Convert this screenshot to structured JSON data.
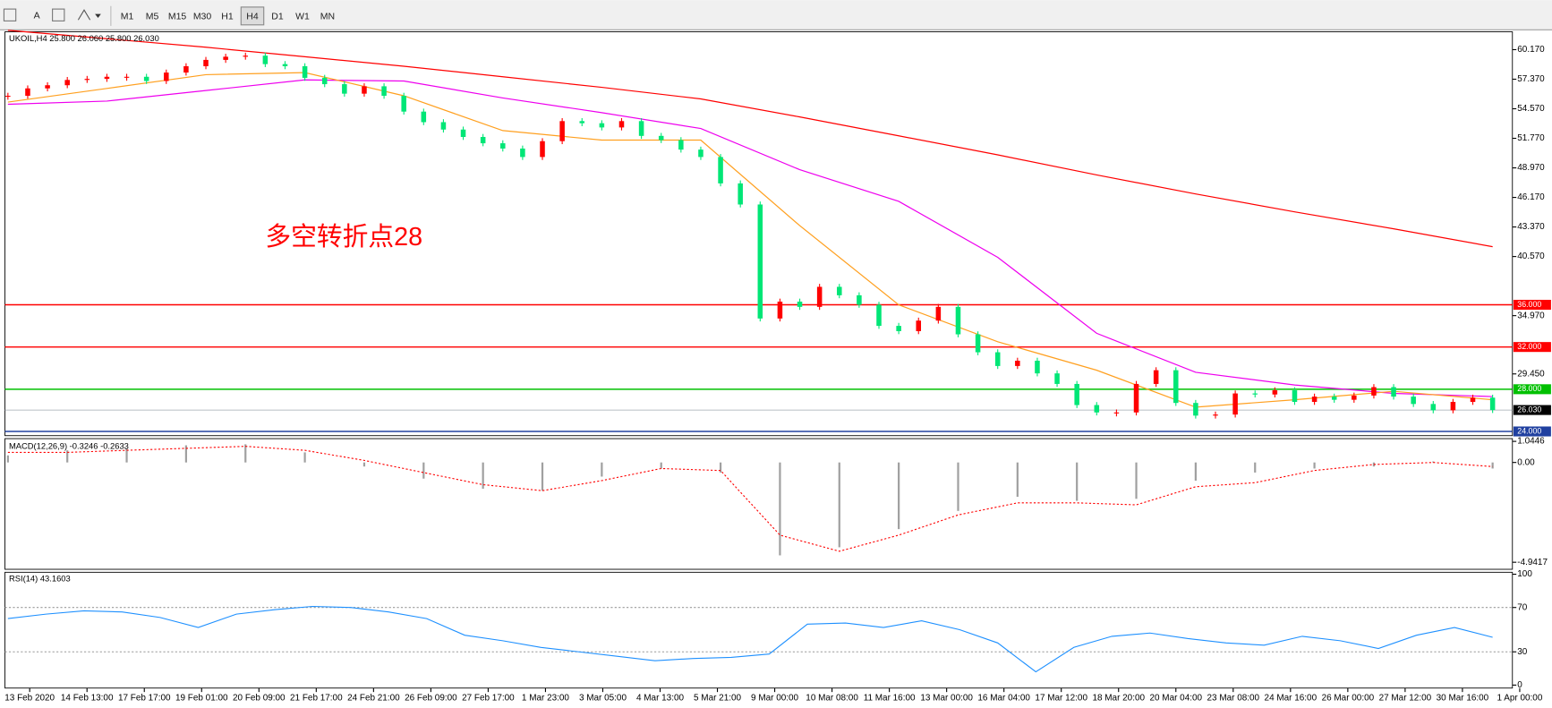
{
  "toolbar": {
    "timeframes": [
      "M1",
      "M5",
      "M15",
      "M30",
      "H1",
      "H4",
      "D1",
      "W1",
      "MN"
    ],
    "active": "H4"
  },
  "chart_data": [
    {
      "type": "candlestick",
      "title": "UKOIL,H4  25.800 26.060 25.800 26.030",
      "annotation": "多空转折点28",
      "up_color": "#ff0000",
      "down_color": "#00e676",
      "closes": [
        55.8,
        56.5,
        56.8,
        57.3,
        57.4,
        57.6,
        57.6,
        57.2,
        58.0,
        58.6,
        59.2,
        59.5,
        59.6,
        58.8,
        58.6,
        57.5,
        56.9,
        56.0,
        56.7,
        55.8,
        54.3,
        53.3,
        52.6,
        51.9,
        51.3,
        50.8,
        50.0,
        51.5,
        53.4,
        53.2,
        52.8,
        53.4,
        52.0,
        51.6,
        50.7,
        50.0,
        47.5,
        45.5,
        34.7,
        36.3,
        35.8,
        37.7,
        36.9,
        36.0,
        34.0,
        33.5,
        34.5,
        35.8,
        33.2,
        31.5,
        30.2,
        30.7,
        29.5,
        28.5,
        26.5,
        25.8,
        25.8,
        28.5,
        29.8,
        26.7,
        25.5,
        25.6,
        27.6,
        27.5,
        27.9,
        26.8,
        27.3,
        27.0,
        27.4,
        28.2,
        27.3,
        26.6,
        26.0,
        26.8,
        27.2,
        26.03
      ],
      "moving_averages": [
        {
          "color": "#ff0000",
          "values": [
            62,
            61.2,
            60.4,
            59.5,
            58.6,
            57.6,
            56.6,
            55.5,
            53.8,
            52.0,
            50.2,
            48.3,
            46.5,
            44.8,
            43.2,
            41.5
          ]
        },
        {
          "color": "#ee00ee",
          "values": [
            55.0,
            55.3,
            56.3,
            57.3,
            57.2,
            55.6,
            54.2,
            52.7,
            48.8,
            45.8,
            40.5,
            33.3,
            29.6,
            28.4,
            27.6,
            27.3
          ]
        },
        {
          "color": "#ffa020",
          "values": [
            55.2,
            56.5,
            57.8,
            58.0,
            55.8,
            52.5,
            51.6,
            51.6,
            43.5,
            36.0,
            32.5,
            29.8,
            26.3,
            27.0,
            27.8,
            27.0
          ]
        }
      ],
      "levels": [
        {
          "value": 36,
          "label": "36.000",
          "color": "#ff0000"
        },
        {
          "value": 32,
          "label": "32.000",
          "color": "#ff0000"
        },
        {
          "value": 28,
          "label": "28.000",
          "color": "#00c000"
        },
        {
          "value": 24,
          "label": "24.000",
          "color": "#2040a0"
        }
      ],
      "current": {
        "value": 26.03,
        "label": "26.030"
      },
      "ylim": [
        23.6,
        61.86
      ],
      "yticks": [
        {
          "value": 60.17,
          "label": "60.170"
        },
        {
          "value": 57.37,
          "label": "57.370"
        },
        {
          "value": 54.57,
          "label": "54.570"
        },
        {
          "value": 51.77,
          "label": "51.770"
        },
        {
          "value": 48.97,
          "label": "48.970"
        },
        {
          "value": 46.17,
          "label": "46.170"
        },
        {
          "value": 43.37,
          "label": "43.370"
        },
        {
          "value": 40.57,
          "label": "40.570"
        },
        {
          "value": 34.97,
          "label": "34.970"
        },
        {
          "value": 29.45,
          "label": "29.450"
        }
      ],
      "time_labels": [
        "13 Feb 2020",
        "14 Feb 13:00",
        "17 Feb 17:00",
        "19 Feb 01:00",
        "20 Feb 09:00",
        "21 Feb 17:00",
        "24 Feb 21:00",
        "26 Feb 09:00",
        "27 Feb 17:00",
        "1 Mar 23:00",
        "3 Mar 05:00",
        "4 Mar 13:00",
        "5 Mar 21:00",
        "9 Mar 00:00",
        "10 Mar 08:00",
        "11 Mar 16:00",
        "13 Mar 00:00",
        "16 Mar 04:00",
        "17 Mar 12:00",
        "18 Mar 20:00",
        "20 Mar 04:00",
        "23 Mar 08:00",
        "24 Mar 16:00",
        "26 Mar 00:00",
        "27 Mar 12:00",
        "30 Mar 16:00",
        "1 Apr 00:00"
      ]
    },
    {
      "type": "macd",
      "title": "MACD(12,26,9) -0.3246 -0.2633",
      "histogram": [
        0.35,
        0.6,
        0.7,
        0.85,
        0.9,
        0.5,
        -0.2,
        -0.8,
        -1.3,
        -1.4,
        -0.7,
        -0.3,
        -0.5,
        -4.6,
        -4.2,
        -3.3,
        -2.4,
        -1.7,
        -1.9,
        -1.8,
        -0.9,
        -0.5,
        -0.3,
        -0.2,
        0.05,
        -0.3
      ],
      "signal": [
        0.5,
        0.5,
        0.6,
        0.7,
        0.8,
        0.6,
        0.1,
        -0.5,
        -1.1,
        -1.4,
        -0.9,
        -0.3,
        -0.4,
        -3.6,
        -4.4,
        -3.6,
        -2.6,
        -2.0,
        -2.0,
        -2.1,
        -1.2,
        -1.0,
        -0.4,
        -0.1,
        0.0,
        -0.2
      ],
      "histogram_color": "#a0a0a0",
      "signal_color": "#ff0000",
      "ylim": [
        -5.29,
        1.18
      ],
      "yticks": [
        {
          "value": 1.0446,
          "label": "1.0446"
        },
        {
          "value": 0,
          "label": "0.00"
        },
        {
          "value": -4.9417,
          "label": "-4.9417"
        }
      ]
    },
    {
      "type": "rsi",
      "title": "RSI(14) 43.1603",
      "values": [
        60,
        64,
        67,
        66,
        61,
        52,
        64,
        68,
        71,
        70,
        66,
        60,
        45,
        40,
        34,
        30,
        26,
        22,
        24,
        25,
        28,
        55,
        56,
        52,
        58,
        50,
        38,
        12,
        34,
        44,
        47,
        42,
        38,
        36,
        44,
        40,
        33,
        45,
        52,
        43.16
      ],
      "color": "#1e90ff",
      "ylim": [
        0,
        100
      ],
      "yticks": [
        100,
        70,
        30,
        0
      ],
      "levels": [
        70,
        30
      ]
    }
  ]
}
